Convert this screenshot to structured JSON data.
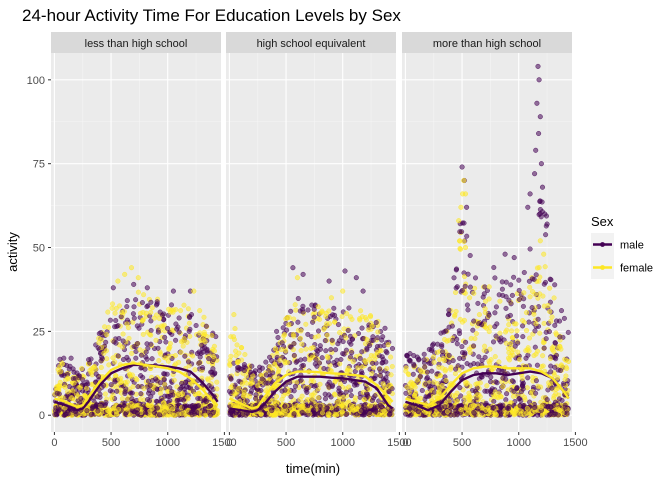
{
  "chart_data": {
    "type": "scatter",
    "title": "24-hour Activity Time For Education Levels by Sex",
    "xlabel": "time(min)",
    "ylabel": "activity",
    "xlim": [
      -30,
      1470
    ],
    "ylim": [
      -5,
      108
    ],
    "x_ticks": [
      0,
      500,
      1000,
      1500
    ],
    "x_tick_labels": [
      "0",
      "500",
      "1000",
      "1500"
    ],
    "y_ticks": [
      0,
      25,
      50,
      75,
      100
    ],
    "y_tick_labels": [
      "0",
      "25",
      "50",
      "75",
      "100"
    ],
    "grid": true,
    "legend": {
      "title": "Sex",
      "position": "right",
      "entries": [
        {
          "name": "male",
          "color": "#440154"
        },
        {
          "name": "female",
          "color": "#FDE725"
        }
      ]
    },
    "facets": [
      {
        "label": "less than high school",
        "series": [
          {
            "name": "male",
            "color": "#440154",
            "band": {
              "x": [
                0,
                120,
                240,
                300,
                360,
                420,
                480,
                600,
                720,
                840,
                960,
                1080,
                1200,
                1320,
                1440
              ],
              "hi": [
                20,
                18,
                16,
                18,
                22,
                28,
                33,
                34,
                35,
                36,
                34,
                33,
                31,
                30,
                24
              ]
            },
            "outliers": [
              [
                520,
                38
              ],
              [
                700,
                39
              ],
              [
                1050,
                37
              ],
              [
                1200,
                37
              ],
              [
                820,
                38
              ]
            ],
            "smooth": {
              "x": [
                0,
                100,
                200,
                250,
                300,
                400,
                500,
                600,
                700,
                800,
                900,
                1000,
                1100,
                1200,
                1300,
                1400,
                1440
              ],
              "y": [
                4,
                3,
                1.5,
                2,
                4,
                9,
                12.5,
                14,
                15,
                15,
                14.8,
                14.5,
                14,
                13,
                10,
                6,
                4
              ]
            }
          },
          {
            "name": "female",
            "color": "#FDE725",
            "band": {
              "x": [
                0,
                120,
                240,
                300,
                360,
                420,
                480,
                600,
                720,
                840,
                960,
                1080,
                1200,
                1320,
                1440
              ],
              "hi": [
                18,
                14,
                14,
                16,
                20,
                26,
                33,
                37,
                37,
                36,
                34,
                34,
                32,
                31,
                24
              ]
            },
            "outliers": [
              [
                560,
                40
              ],
              [
                680,
                44
              ],
              [
                620,
                42
              ],
              [
                740,
                41
              ],
              [
                1230,
                37
              ]
            ],
            "smooth": {
              "x": [
                0,
                100,
                200,
                250,
                300,
                400,
                500,
                600,
                700,
                800,
                900,
                1000,
                1100,
                1200,
                1300,
                1400,
                1440
              ],
              "y": [
                5,
                4,
                2.5,
                3,
                5.5,
                10,
                13.5,
                15,
                15.5,
                15,
                14.5,
                14,
                13,
                11,
                8,
                4,
                3
              ]
            }
          }
        ]
      },
      {
        "label": "high school equivalent",
        "series": [
          {
            "name": "male",
            "color": "#440154",
            "band": {
              "x": [
                0,
                120,
                240,
                300,
                360,
                420,
                480,
                600,
                720,
                840,
                960,
                1080,
                1200,
                1320,
                1440
              ],
              "hi": [
                22,
                16,
                14,
                15,
                18,
                26,
                32,
                36,
                33,
                33,
                32,
                32,
                32,
                30,
                22
              ]
            },
            "outliers": [
              [
                560,
                44
              ],
              [
                650,
                42
              ],
              [
                880,
                40
              ],
              [
                1020,
                43
              ],
              [
                1120,
                41
              ],
              [
                1180,
                37
              ]
            ],
            "smooth": {
              "x": [
                0,
                100,
                200,
                250,
                300,
                400,
                500,
                600,
                700,
                800,
                900,
                1000,
                1100,
                1200,
                1300,
                1400,
                1440
              ],
              "y": [
                2,
                1.5,
                1,
                1.5,
                3,
                7,
                10,
                11.5,
                11.5,
                11.5,
                11.2,
                11,
                10.5,
                10,
                8,
                3,
                2
              ]
            }
          },
          {
            "name": "female",
            "color": "#FDE725",
            "band": {
              "x": [
                0,
                120,
                240,
                300,
                360,
                420,
                480,
                600,
                720,
                840,
                960,
                1080,
                1200,
                1320,
                1440
              ],
              "hi": [
                30,
                20,
                12,
                13,
                16,
                22,
                30,
                35,
                33,
                32,
                31,
                32,
                31,
                28,
                20
              ]
            },
            "outliers": [
              [
                40,
                30
              ],
              [
                600,
                41
              ],
              [
                900,
                35
              ],
              [
                1000,
                37
              ]
            ],
            "smooth": {
              "x": [
                0,
                100,
                200,
                250,
                300,
                400,
                500,
                600,
                700,
                800,
                900,
                1000,
                1100,
                1200,
                1300,
                1400,
                1440
              ],
              "y": [
                5,
                3.5,
                2,
                2.5,
                5,
                9.5,
                12,
                13,
                13,
                12.8,
                12.5,
                12.3,
                12,
                11.5,
                9,
                5.5,
                4
              ]
            }
          }
        ]
      },
      {
        "label": "more than high school",
        "series": [
          {
            "name": "male",
            "color": "#440154",
            "band": {
              "x": [
                0,
                120,
                240,
                300,
                360,
                420,
                480,
                540,
                600,
                720,
                840,
                960,
                1080,
                1140,
                1200,
                1260,
                1320,
                1440
              ],
              "hi": [
                20,
                18,
                22,
                24,
                28,
                38,
                58,
                60,
                42,
                45,
                45,
                42,
                48,
                60,
                66,
                58,
                40,
                25
              ]
            },
            "outliers": [
              [
                500,
                74
              ],
              [
                520,
                70
              ],
              [
                540,
                62
              ],
              [
                1170,
                104
              ],
              [
                1180,
                100
              ],
              [
                1160,
                93
              ],
              [
                1190,
                89
              ],
              [
                1175,
                84
              ],
              [
                1150,
                79
              ],
              [
                1200,
                75
              ],
              [
                1140,
                72
              ],
              [
                1210,
                68
              ],
              [
                1230,
                60
              ],
              [
                1100,
                66
              ],
              [
                1080,
                62
              ],
              [
                1250,
                57
              ],
              [
                880,
                48
              ],
              [
                960,
                47
              ],
              [
                380,
                30
              ]
            ],
            "smooth": {
              "x": [
                0,
                100,
                200,
                300,
                400,
                500,
                600,
                700,
                800,
                900,
                1000,
                1100,
                1200,
                1300,
                1400,
                1440
              ],
              "y": [
                4,
                3,
                1.5,
                3,
                7,
                10.5,
                12,
                12.5,
                12.5,
                12,
                12.5,
                13,
                12.5,
                11,
                7,
                5
              ]
            }
          },
          {
            "name": "female",
            "color": "#FDE725",
            "band": {
              "x": [
                0,
                120,
                240,
                300,
                360,
                420,
                480,
                540,
                600,
                720,
                840,
                960,
                1080,
                1140,
                1200,
                1260,
                1320,
                1440
              ],
              "hi": [
                18,
                16,
                18,
                20,
                26,
                36,
                55,
                58,
                40,
                40,
                38,
                36,
                40,
                45,
                48,
                42,
                35,
                22
              ]
            },
            "outliers": [
              [
                470,
                58
              ],
              [
                490,
                62
              ],
              [
                505,
                66
              ],
              [
                515,
                70
              ],
              [
                530,
                66
              ],
              [
                480,
                52
              ],
              [
                530,
                50
              ],
              [
                1190,
                52
              ],
              [
                1220,
                48
              ]
            ],
            "smooth": {
              "x": [
                0,
                100,
                200,
                300,
                400,
                500,
                600,
                700,
                800,
                900,
                1000,
                1100,
                1200,
                1300,
                1400,
                1440
              ],
              "y": [
                5,
                4,
                3,
                5,
                9,
                12.5,
                14,
                14.5,
                14.5,
                14,
                14,
                14,
                13,
                11,
                7,
                5
              ]
            }
          }
        ]
      }
    ]
  }
}
